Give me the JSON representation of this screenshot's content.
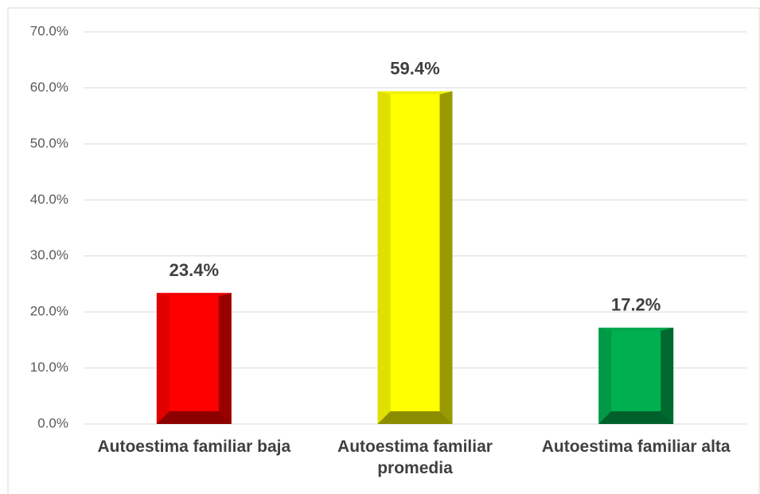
{
  "chart_data": {
    "type": "bar",
    "categories": [
      "Autoestima familiar baja",
      "Autoestima familiar promedia",
      "Autoestima familiar alta"
    ],
    "values": [
      23.4,
      59.4,
      17.2
    ],
    "value_labels": [
      "23.4%",
      "59.4%",
      "17.2%"
    ],
    "colors": [
      "#ff0000",
      "#ffff00",
      "#00b050"
    ],
    "ylim": [
      0,
      70
    ],
    "yticks": [
      {
        "value": 0,
        "label": "0.0%"
      },
      {
        "value": 10,
        "label": "10.0%"
      },
      {
        "value": 20,
        "label": "20.0%"
      },
      {
        "value": 30,
        "label": "30.0%"
      },
      {
        "value": 40,
        "label": "40.0%"
      },
      {
        "value": 50,
        "label": "50.0%"
      },
      {
        "value": 60,
        "label": "60.0%"
      },
      {
        "value": 70,
        "label": "70.0%"
      }
    ],
    "grid": true
  }
}
